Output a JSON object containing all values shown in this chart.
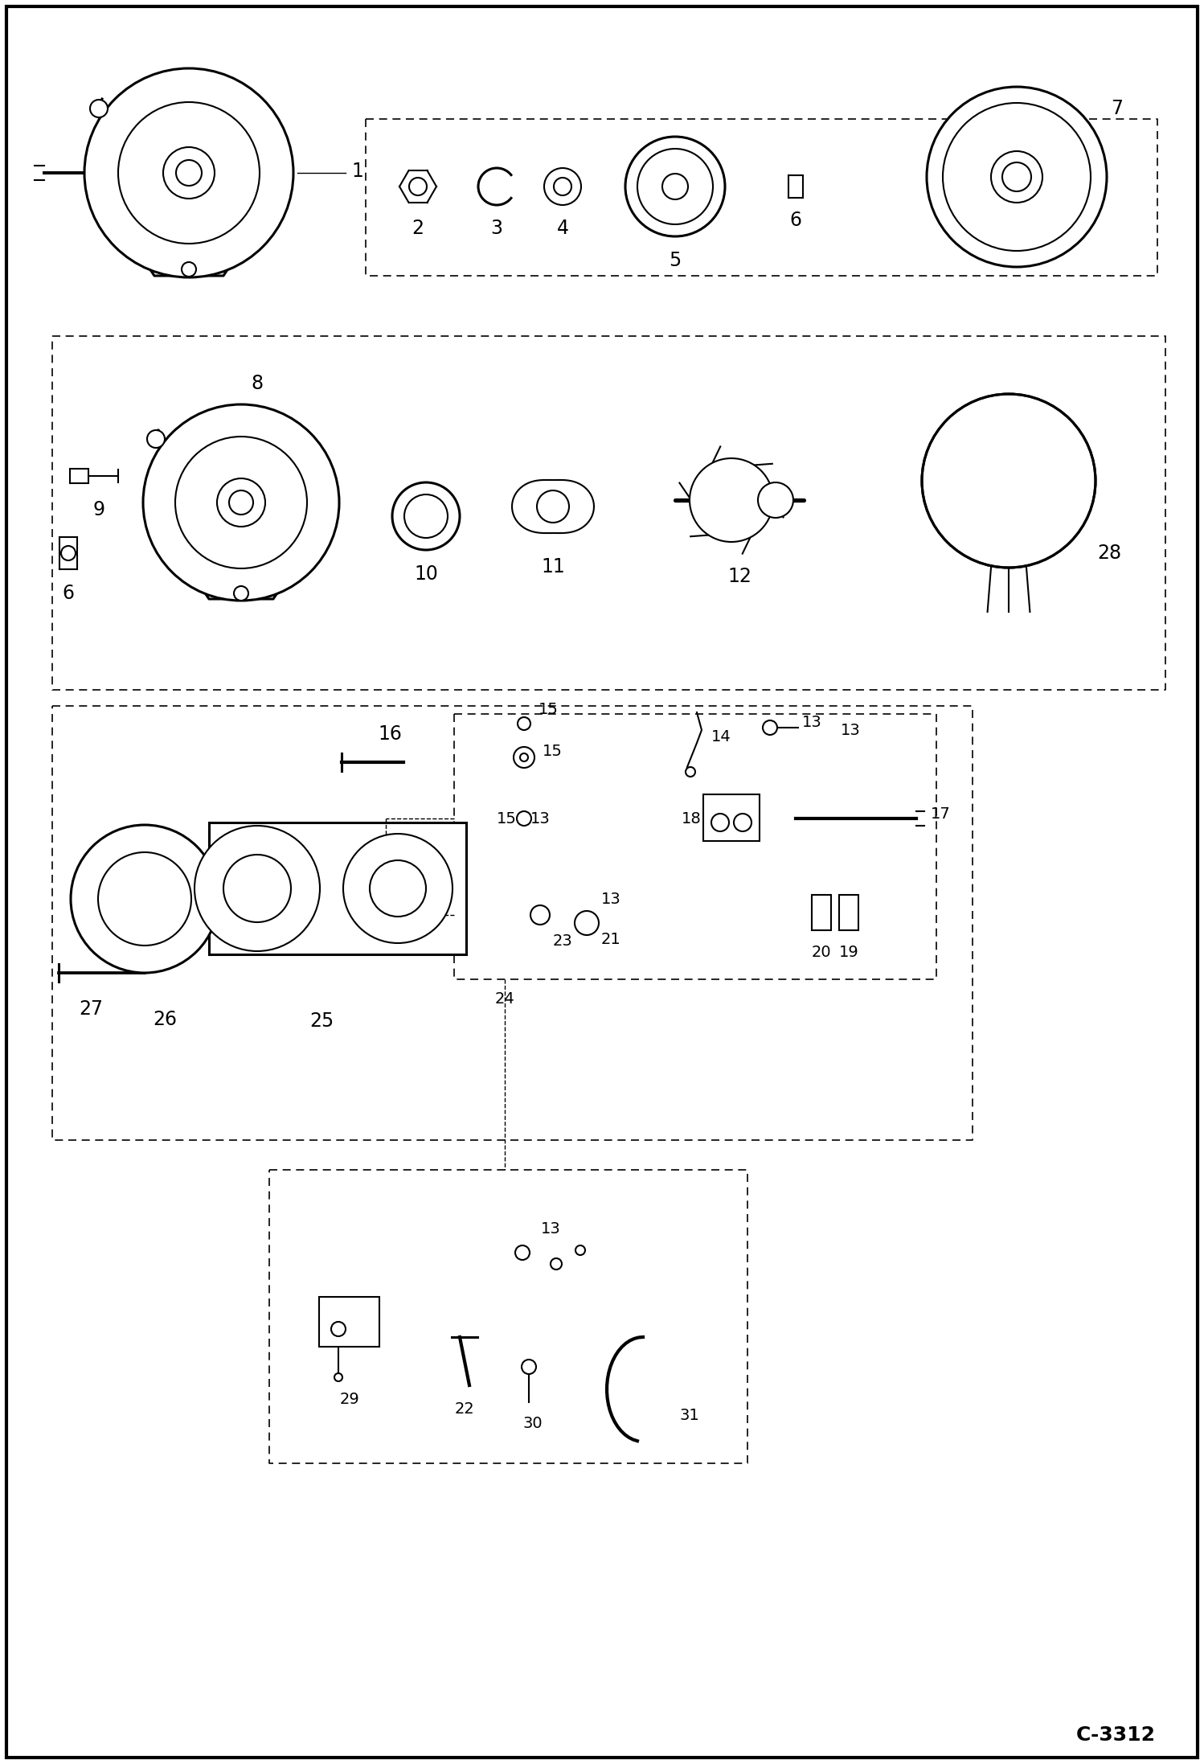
{
  "bg_color": "#ffffff",
  "line_color": "#000000",
  "figure_width": 14.98,
  "figure_height": 21.94,
  "dpi": 100,
  "page_code": "C-3312"
}
